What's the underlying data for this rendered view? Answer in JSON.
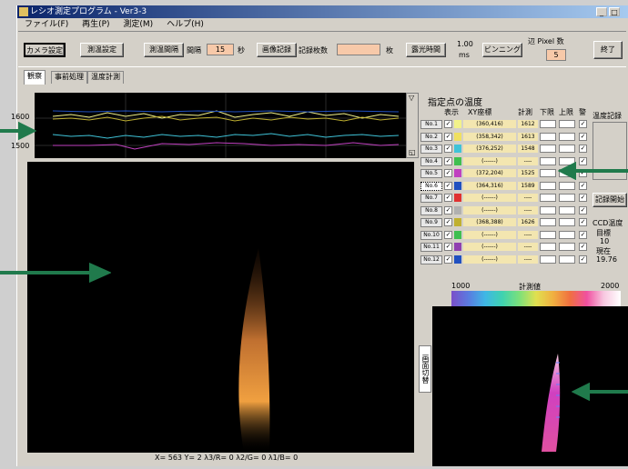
{
  "title": "レシオ測定プログラム - Ver3-3",
  "window_controls": [
    "_",
    "□"
  ],
  "menu": [
    "ファイル(F)",
    "再生(P)",
    "測定(M)",
    "ヘルプ(H)"
  ],
  "toolbar": {
    "camera": "カメラ設定",
    "measure_setup": "測温設定",
    "interval_btn": "測温間隔",
    "interval_label": "間隔",
    "interval_value": "15",
    "interval_unit": "秒",
    "record_btn": "画像記録",
    "record_count_label": "記録枚数",
    "record_count_value": "",
    "record_count_unit": "枚",
    "exposure_btn": "露光時間",
    "exposure_value": "1.00",
    "exposure_unit": "ms",
    "binning_btn": "ビンニング",
    "pixel_label": "辺 Pixel 数",
    "pixel_value": "5",
    "exit": "終了"
  },
  "tabs": [
    "観察",
    "事前処理",
    "温度計測"
  ],
  "graph": {
    "y_labels": [
      "1600",
      "1500"
    ],
    "scroll_up": "▽",
    "scroll_down": "◱"
  },
  "panel": {
    "title": "指定点の温度",
    "headers": {
      "show": "表示",
      "xy": "XY座標",
      "meas": "計測",
      "lo": "下限",
      "hi": "上限",
      "alarm": "警"
    },
    "rows": [
      {
        "no": "No.1",
        "checked": "✓",
        "color": "#f2f28a",
        "xy": "(360,416)",
        "temp": "1612",
        "alarm": "✓"
      },
      {
        "no": "No.2",
        "checked": "✓",
        "color": "#f0e060",
        "xy": "(358,342)",
        "temp": "1613",
        "alarm": "✓"
      },
      {
        "no": "No.3",
        "checked": "✓",
        "color": "#3fc3d8",
        "xy": "(376,252)",
        "temp": "1548",
        "alarm": "✓"
      },
      {
        "no": "No.4",
        "checked": "✓",
        "color": "#3fbf50",
        "xy": "(------)",
        "temp": "----",
        "alarm": "✓"
      },
      {
        "no": "No.5",
        "checked": "✓",
        "color": "#c040c0",
        "xy": "(372,204)",
        "temp": "1525",
        "alarm": "✓"
      },
      {
        "no": "No.6",
        "checked": "✓",
        "color": "#2050c0",
        "xy": "(364,316)",
        "temp": "1589",
        "alarm": "✓"
      },
      {
        "no": "No.7",
        "checked": "✓",
        "color": "#e03030",
        "xy": "(------)",
        "temp": "----",
        "alarm": "✓"
      },
      {
        "no": "No.8",
        "checked": "✓",
        "color": "#b0b0b0",
        "xy": "(------)",
        "temp": "----",
        "alarm": "✓"
      },
      {
        "no": "No.9",
        "checked": "✓",
        "color": "#c0b030",
        "xy": "(368,388)",
        "temp": "1626",
        "alarm": "✓"
      },
      {
        "no": "No.10",
        "checked": "✓",
        "color": "#3fbf50",
        "xy": "(------)",
        "temp": "----",
        "alarm": "✓"
      },
      {
        "no": "No.11",
        "checked": "✓",
        "color": "#9040b0",
        "xy": "(------)",
        "temp": "----",
        "alarm": "✓"
      },
      {
        "no": "No.12",
        "checked": "✓",
        "color": "#2050c0",
        "xy": "(------)",
        "temp": "----",
        "alarm": "✓"
      }
    ],
    "temp_record_label": "温度記録",
    "record_start": "記録開始",
    "ccd_label": "CCD温度",
    "target_label": "目標",
    "target_value": "10",
    "current_label": "現在",
    "current_value": "19.76"
  },
  "colorbar": {
    "min": "1000",
    "mid": "計測値",
    "max": "2000"
  },
  "side_button": "画面切替",
  "status_text": "X= 563 Y= 2  λ3/R= 0  λ2/G= 0  λ1/B= 0"
}
